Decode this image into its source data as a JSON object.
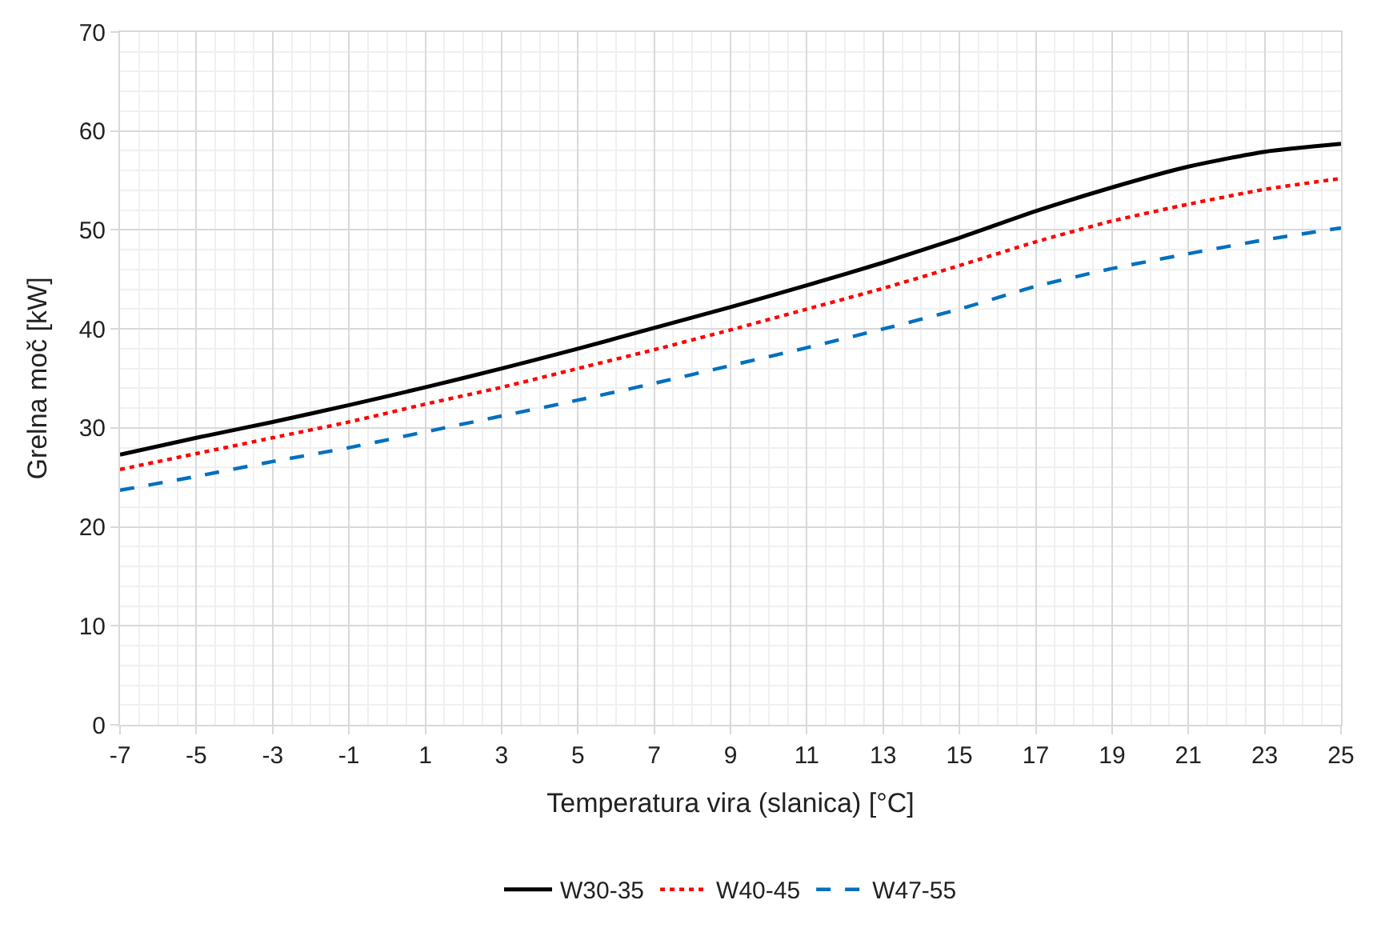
{
  "chart_data": {
    "type": "line",
    "xlabel": "Temperatura vira (slanica) [°C]",
    "ylabel": "Grelna moč [kW]",
    "x": [
      -7,
      -5,
      -3,
      -1,
      1,
      3,
      5,
      7,
      9,
      11,
      13,
      15,
      17,
      19,
      21,
      23,
      25
    ],
    "series": [
      {
        "name": "W30-35",
        "color": "#000000",
        "line_style": "solid",
        "values": [
          27.3,
          29.0,
          30.6,
          32.3,
          34.1,
          36.0,
          38.0,
          40.1,
          42.2,
          44.4,
          46.7,
          49.2,
          51.9,
          54.3,
          56.4,
          57.9,
          58.7
        ]
      },
      {
        "name": "W40-45",
        "color": "#ff0000",
        "line_style": "dotted",
        "values": [
          25.8,
          27.4,
          29.0,
          30.6,
          32.4,
          34.1,
          36.0,
          37.9,
          39.9,
          42.0,
          44.1,
          46.4,
          48.8,
          50.9,
          52.6,
          54.1,
          55.2
        ]
      },
      {
        "name": "W47-55",
        "color": "#0070c0",
        "line_style": "dashed",
        "values": [
          23.7,
          25.1,
          26.6,
          28.0,
          29.6,
          31.2,
          32.8,
          34.5,
          36.3,
          38.1,
          40.0,
          42.0,
          44.3,
          46.1,
          47.6,
          49.0,
          50.2
        ]
      }
    ],
    "xlim": [
      -7,
      25
    ],
    "xticks": [
      -7,
      -5,
      -3,
      -1,
      1,
      3,
      5,
      7,
      9,
      11,
      13,
      15,
      17,
      19,
      21,
      23,
      25
    ],
    "ylim": [
      0,
      70
    ],
    "yticks": [
      0,
      10,
      20,
      30,
      40,
      50,
      60,
      70
    ],
    "grid": true,
    "legend": "bottom",
    "marker": "none"
  }
}
